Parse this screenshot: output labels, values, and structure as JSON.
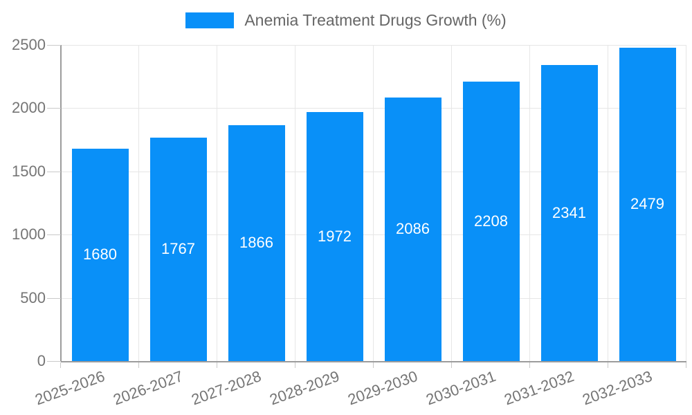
{
  "legend": {
    "label": "Anemia Treatment Drugs Growth (%)"
  },
  "chart_data": {
    "type": "bar",
    "title": "Anemia Treatment Drugs Growth (%)",
    "categories": [
      "2025-2026",
      "2026-2027",
      "2027-2028",
      "2028-2029",
      "2029-2030",
      "2030-2031",
      "2031-2032",
      "2032-2033"
    ],
    "values": [
      1680,
      1767,
      1866,
      1972,
      2086,
      2208,
      2341,
      2479
    ],
    "xlabel": "",
    "ylabel": "",
    "ylim": [
      0,
      2500
    ],
    "yticks": [
      0,
      500,
      1000,
      1500,
      2000,
      2500
    ],
    "grid": true,
    "legend_position": "top",
    "bar_color": "#0990f8",
    "value_label_color": "#ffffff",
    "axis_color": "#9c9c9c",
    "gridline_color": "#e6e6e6",
    "tick_label_color": "#757575"
  }
}
